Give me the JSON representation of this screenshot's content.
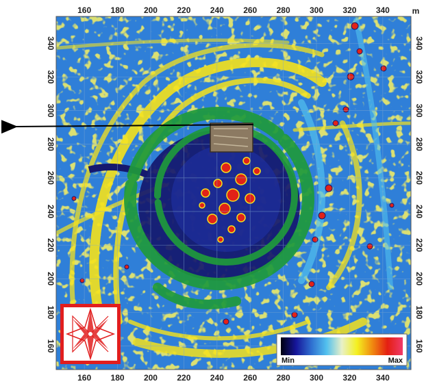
{
  "map": {
    "axis_unit": "m",
    "x_ticks": [
      "160",
      "180",
      "200",
      "220",
      "240",
      "260",
      "280",
      "300",
      "320",
      "340"
    ],
    "y_ticks": [
      "160",
      "180",
      "200",
      "220",
      "240",
      "260",
      "280",
      "300",
      "320",
      "340"
    ],
    "x_range": [
      143,
      357
    ],
    "y_range": [
      146,
      356
    ]
  },
  "legend": {
    "min_label": "Min",
    "max_label": "Max",
    "gradient": [
      "#000010",
      "#16169a",
      "#2f6fd0",
      "#52c0ee",
      "#e8f0c8",
      "#f4f020",
      "#f08a10",
      "#e41f12",
      "#f03a6a"
    ]
  },
  "colors": {
    "background_blue": "#2f7fd8",
    "feature_yellow": "#f5e21c",
    "anomaly_red": "#e22218",
    "low_navy": "#15186e",
    "ring_green": "#1f9a3c",
    "grid_line": "#7fa8d0",
    "compass_red": "#e11e1e"
  },
  "icons": {
    "compass": "eight-point-star-compass-icon",
    "arrow": "direction-arrow-left-icon"
  }
}
